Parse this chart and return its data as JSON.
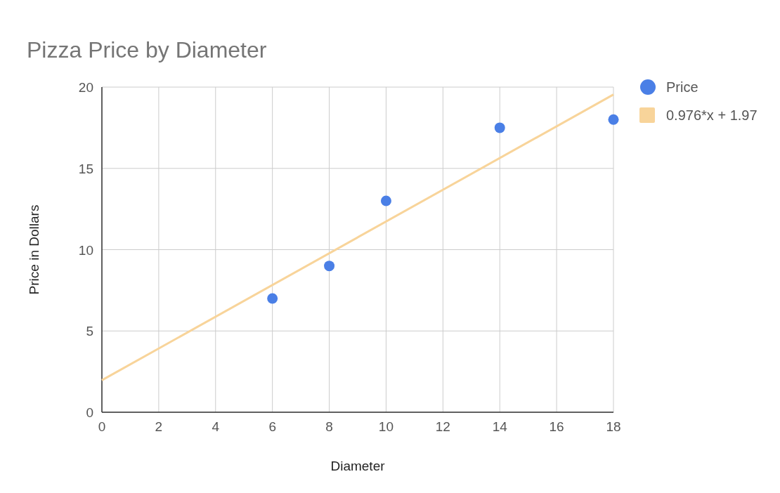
{
  "chart_data": {
    "type": "scatter",
    "title": "Pizza Price by Diameter",
    "xlabel": "Diameter",
    "ylabel": "Price in Dollars",
    "xlim": [
      0,
      18
    ],
    "xticks": [
      0,
      2,
      4,
      6,
      8,
      10,
      12,
      14,
      16,
      18
    ],
    "ylim": [
      0,
      20
    ],
    "yticks": [
      0,
      5,
      10,
      15,
      20
    ],
    "grid": true,
    "legend": "top right",
    "series": [
      {
        "name": "Price",
        "marker": "circle",
        "color": "#4a7fe6",
        "x": [
          6,
          8,
          10,
          14,
          18
        ],
        "values": [
          7,
          9,
          13,
          17.5,
          18
        ]
      },
      {
        "name": "0.976*x + 1.97",
        "type": "line",
        "color": "#f8d49a",
        "x": [
          0,
          18
        ],
        "values": [
          1.97,
          19.54
        ],
        "line_style": "solid"
      }
    ]
  }
}
